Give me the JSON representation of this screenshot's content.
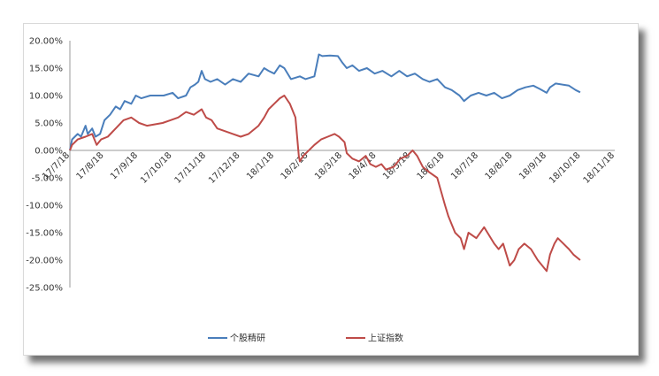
{
  "chart_data": {
    "type": "line",
    "title": "",
    "xlabel": "",
    "ylabel": "",
    "ylim": [
      -0.25,
      0.2
    ],
    "yticks": [
      "20.00%",
      "15.00%",
      "10.00%",
      "5.00%",
      "0.00%",
      "-5.00%",
      "-10.00%",
      "-15.00%",
      "-20.00%",
      "-25.00%"
    ],
    "xticks": [
      "17/7/18",
      "17/8/18",
      "17/9/18",
      "17/10/18",
      "17/11/18",
      "17/12/18",
      "18/1/18",
      "18/2/18",
      "18/3/18",
      "18/4/18",
      "18/5/18",
      "18/6/18",
      "18/7/18",
      "18/8/18",
      "18/9/18",
      "18/10/18",
      "18/11/18"
    ],
    "xlim": [
      "2017-07-18",
      "2018-11-18"
    ],
    "legend_position": "bottom",
    "grid": false,
    "series": [
      {
        "name": "个股精研",
        "color": "#4a7ebb",
        "points": [
          [
            "2017-07-18",
            0.0
          ],
          [
            "2017-07-20",
            0.02
          ],
          [
            "2017-07-25",
            0.03
          ],
          [
            "2017-07-28",
            0.025
          ],
          [
            "2017-08-01",
            0.045
          ],
          [
            "2017-08-03",
            0.03
          ],
          [
            "2017-08-07",
            0.04
          ],
          [
            "2017-08-10",
            0.025
          ],
          [
            "2017-08-14",
            0.03
          ],
          [
            "2017-08-18",
            0.055
          ],
          [
            "2017-08-23",
            0.065
          ],
          [
            "2017-08-28",
            0.08
          ],
          [
            "2017-09-01",
            0.075
          ],
          [
            "2017-09-05",
            0.09
          ],
          [
            "2017-09-11",
            0.085
          ],
          [
            "2017-09-15",
            0.1
          ],
          [
            "2017-09-20",
            0.095
          ],
          [
            "2017-09-28",
            0.1
          ],
          [
            "2017-10-10",
            0.1
          ],
          [
            "2017-10-18",
            0.105
          ],
          [
            "2017-10-23",
            0.095
          ],
          [
            "2017-10-30",
            0.1
          ],
          [
            "2017-11-03",
            0.115
          ],
          [
            "2017-11-07",
            0.12
          ],
          [
            "2017-11-10",
            0.125
          ],
          [
            "2017-11-13",
            0.145
          ],
          [
            "2017-11-16",
            0.13
          ],
          [
            "2017-11-21",
            0.125
          ],
          [
            "2017-11-27",
            0.13
          ],
          [
            "2017-12-04",
            0.12
          ],
          [
            "2017-12-11",
            0.13
          ],
          [
            "2017-12-18",
            0.125
          ],
          [
            "2017-12-25",
            0.14
          ],
          [
            "2018-01-03",
            0.135
          ],
          [
            "2018-01-08",
            0.15
          ],
          [
            "2018-01-12",
            0.145
          ],
          [
            "2018-01-17",
            0.14
          ],
          [
            "2018-01-22",
            0.155
          ],
          [
            "2018-01-26",
            0.15
          ],
          [
            "2018-02-01",
            0.13
          ],
          [
            "2018-02-09",
            0.135
          ],
          [
            "2018-02-14",
            0.13
          ],
          [
            "2018-02-22",
            0.135
          ],
          [
            "2018-02-26",
            0.175
          ],
          [
            "2018-03-01",
            0.172
          ],
          [
            "2018-03-08",
            0.173
          ],
          [
            "2018-03-15",
            0.172
          ],
          [
            "2018-03-19",
            0.16
          ],
          [
            "2018-03-23",
            0.15
          ],
          [
            "2018-03-28",
            0.155
          ],
          [
            "2018-04-03",
            0.145
          ],
          [
            "2018-04-10",
            0.15
          ],
          [
            "2018-04-17",
            0.14
          ],
          [
            "2018-04-24",
            0.145
          ],
          [
            "2018-05-02",
            0.135
          ],
          [
            "2018-05-09",
            0.145
          ],
          [
            "2018-05-16",
            0.135
          ],
          [
            "2018-05-23",
            0.14
          ],
          [
            "2018-05-30",
            0.13
          ],
          [
            "2018-06-05",
            0.125
          ],
          [
            "2018-06-12",
            0.13
          ],
          [
            "2018-06-19",
            0.115
          ],
          [
            "2018-06-25",
            0.11
          ],
          [
            "2018-07-02",
            0.1
          ],
          [
            "2018-07-06",
            0.09
          ],
          [
            "2018-07-12",
            0.1
          ],
          [
            "2018-07-19",
            0.105
          ],
          [
            "2018-07-26",
            0.1
          ],
          [
            "2018-08-02",
            0.105
          ],
          [
            "2018-08-09",
            0.095
          ],
          [
            "2018-08-16",
            0.1
          ],
          [
            "2018-08-23",
            0.11
          ],
          [
            "2018-08-30",
            0.115
          ],
          [
            "2018-09-06",
            0.118
          ],
          [
            "2018-09-12",
            0.112
          ],
          [
            "2018-09-18",
            0.105
          ],
          [
            "2018-09-21",
            0.115
          ],
          [
            "2018-09-26",
            0.122
          ],
          [
            "2018-10-08",
            0.118
          ],
          [
            "2018-10-14",
            0.11
          ],
          [
            "2018-10-18",
            0.106
          ]
        ]
      },
      {
        "name": "上证指数",
        "color": "#be4b48",
        "points": [
          [
            "2017-07-18",
            0.0
          ],
          [
            "2017-07-20",
            0.01
          ],
          [
            "2017-07-25",
            0.02
          ],
          [
            "2017-08-01",
            0.025
          ],
          [
            "2017-08-07",
            0.03
          ],
          [
            "2017-08-11",
            0.01
          ],
          [
            "2017-08-15",
            0.02
          ],
          [
            "2017-08-21",
            0.025
          ],
          [
            "2017-08-28",
            0.04
          ],
          [
            "2017-09-04",
            0.055
          ],
          [
            "2017-09-11",
            0.06
          ],
          [
            "2017-09-18",
            0.05
          ],
          [
            "2017-09-25",
            0.045
          ],
          [
            "2017-10-09",
            0.05
          ],
          [
            "2017-10-16",
            0.055
          ],
          [
            "2017-10-23",
            0.06
          ],
          [
            "2017-10-30",
            0.07
          ],
          [
            "2017-11-06",
            0.065
          ],
          [
            "2017-11-13",
            0.075
          ],
          [
            "2017-11-17",
            0.06
          ],
          [
            "2017-11-22",
            0.055
          ],
          [
            "2017-11-27",
            0.04
          ],
          [
            "2017-12-04",
            0.035
          ],
          [
            "2017-12-11",
            0.03
          ],
          [
            "2017-12-18",
            0.025
          ],
          [
            "2017-12-25",
            0.03
          ],
          [
            "2018-01-03",
            0.045
          ],
          [
            "2018-01-08",
            0.06
          ],
          [
            "2018-01-12",
            0.075
          ],
          [
            "2018-01-17",
            0.085
          ],
          [
            "2018-01-22",
            0.095
          ],
          [
            "2018-01-26",
            0.1
          ],
          [
            "2018-01-31",
            0.085
          ],
          [
            "2018-02-05",
            0.06
          ],
          [
            "2018-02-08",
            -0.01
          ],
          [
            "2018-02-09",
            -0.02
          ],
          [
            "2018-02-12",
            -0.01
          ],
          [
            "2018-02-22",
            0.01
          ],
          [
            "2018-02-28",
            0.02
          ],
          [
            "2018-03-06",
            0.025
          ],
          [
            "2018-03-12",
            0.03
          ],
          [
            "2018-03-16",
            0.025
          ],
          [
            "2018-03-21",
            0.015
          ],
          [
            "2018-03-23",
            -0.005
          ],
          [
            "2018-03-28",
            -0.015
          ],
          [
            "2018-04-03",
            -0.02
          ],
          [
            "2018-04-09",
            -0.01
          ],
          [
            "2018-04-13",
            -0.025
          ],
          [
            "2018-04-18",
            -0.03
          ],
          [
            "2018-04-23",
            -0.025
          ],
          [
            "2018-04-27",
            -0.035
          ],
          [
            "2018-05-04",
            -0.03
          ],
          [
            "2018-05-10",
            -0.015
          ],
          [
            "2018-05-16",
            -0.01
          ],
          [
            "2018-05-21",
            0.0
          ],
          [
            "2018-05-25",
            -0.01
          ],
          [
            "2018-05-30",
            -0.03
          ],
          [
            "2018-06-05",
            -0.04
          ],
          [
            "2018-06-12",
            -0.05
          ],
          [
            "2018-06-19",
            -0.1
          ],
          [
            "2018-06-22",
            -0.12
          ],
          [
            "2018-06-28",
            -0.15
          ],
          [
            "2018-07-03",
            -0.16
          ],
          [
            "2018-07-06",
            -0.18
          ],
          [
            "2018-07-10",
            -0.15
          ],
          [
            "2018-07-17",
            -0.16
          ],
          [
            "2018-07-24",
            -0.14
          ],
          [
            "2018-07-27",
            -0.15
          ],
          [
            "2018-08-02",
            -0.17
          ],
          [
            "2018-08-06",
            -0.18
          ],
          [
            "2018-08-10",
            -0.17
          ],
          [
            "2018-08-16",
            -0.21
          ],
          [
            "2018-08-20",
            -0.2
          ],
          [
            "2018-08-24",
            -0.18
          ],
          [
            "2018-08-29",
            -0.17
          ],
          [
            "2018-09-04",
            -0.18
          ],
          [
            "2018-09-10",
            -0.2
          ],
          [
            "2018-09-14",
            -0.21
          ],
          [
            "2018-09-18",
            -0.22
          ],
          [
            "2018-09-21",
            -0.19
          ],
          [
            "2018-09-25",
            -0.17
          ],
          [
            "2018-09-28",
            -0.16
          ],
          [
            "2018-10-08",
            -0.18
          ],
          [
            "2018-10-12",
            -0.19
          ],
          [
            "2018-10-18",
            -0.2
          ]
        ]
      }
    ]
  }
}
